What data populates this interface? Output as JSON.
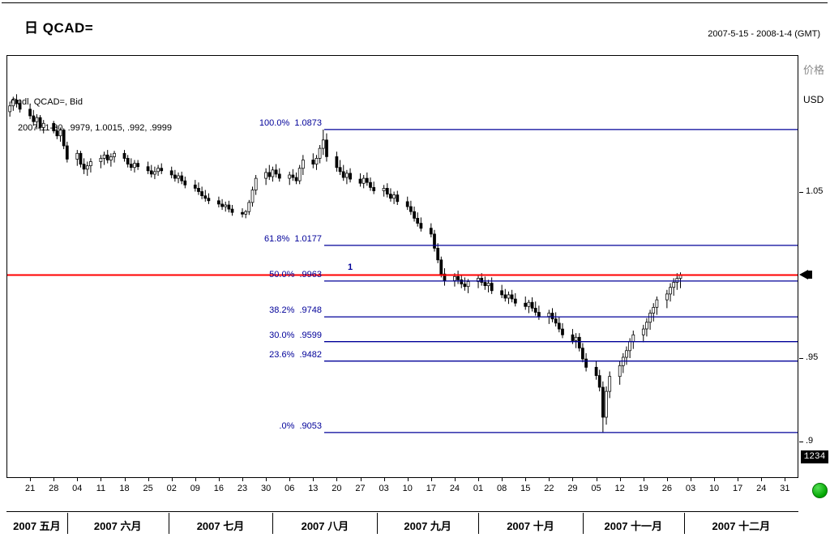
{
  "header": {
    "interval": "日",
    "symbol": "QCAD=",
    "date_range": "2007-5-15 - 2008-1-4 (GMT)"
  },
  "legend": {
    "line1": "Cndl, QCAD=, Bid",
    "line2": "2007-11-30, .9979, 1.0015, .992, .9999"
  },
  "axis": {
    "price_title": "价格",
    "currency": "USD",
    "ticks": [
      [
        1.05,
        "1.05"
      ],
      [
        0.95,
        ".95"
      ],
      [
        0.9,
        ".9"
      ]
    ],
    "badge": "1234"
  },
  "annotations": {
    "fib_handle": "1"
  },
  "colors": {
    "fib": "#000099",
    "current_price": "#ff0000",
    "candle": "#000000",
    "status_green": "#00b400"
  },
  "chart_data": {
    "type": "candlestick",
    "title": "日 QCAD=",
    "symbol": "QCAD=",
    "interval": "daily",
    "x_range": [
      "2007-05-14",
      "2008-01-04"
    ],
    "ylim": [
      0.878,
      1.132
    ],
    "current_price": 0.9999,
    "fib_levels": [
      {
        "pct": "100.0%",
        "display": "1.0873",
        "value": 1.0873
      },
      {
        "pct": "61.8%",
        "display": "1.0177",
        "value": 1.0177
      },
      {
        "pct": "50.0%",
        "display": ".9963",
        "value": 0.9963
      },
      {
        "pct": "38.2%",
        "display": ".9748",
        "value": 0.9748
      },
      {
        "pct": "30.0%",
        "display": ".9599",
        "value": 0.9599
      },
      {
        "pct": "23.6%",
        "display": ".9482",
        "value": 0.9482
      },
      {
        "pct": ".0%",
        "display": ".9053",
        "value": 0.9053
      }
    ],
    "x_ticks": [
      [
        "2007-05-21",
        "21"
      ],
      [
        "2007-05-28",
        "28"
      ],
      [
        "2007-06-04",
        "04"
      ],
      [
        "2007-06-11",
        "11"
      ],
      [
        "2007-06-18",
        "18"
      ],
      [
        "2007-06-25",
        "25"
      ],
      [
        "2007-07-02",
        "02"
      ],
      [
        "2007-07-09",
        "09"
      ],
      [
        "2007-07-16",
        "16"
      ],
      [
        "2007-07-23",
        "23"
      ],
      [
        "2007-07-30",
        "30"
      ],
      [
        "2007-08-06",
        "06"
      ],
      [
        "2007-08-13",
        "13"
      ],
      [
        "2007-08-20",
        "20"
      ],
      [
        "2007-08-27",
        "27"
      ],
      [
        "2007-09-03",
        "03"
      ],
      [
        "2007-09-10",
        "10"
      ],
      [
        "2007-09-17",
        "17"
      ],
      [
        "2007-09-24",
        "24"
      ],
      [
        "2007-10-01",
        "01"
      ],
      [
        "2007-10-08",
        "08"
      ],
      [
        "2007-10-15",
        "15"
      ],
      [
        "2007-10-22",
        "22"
      ],
      [
        "2007-10-29",
        "29"
      ],
      [
        "2007-11-05",
        "05"
      ],
      [
        "2007-11-12",
        "12"
      ],
      [
        "2007-11-19",
        "19"
      ],
      [
        "2007-11-26",
        "26"
      ],
      [
        "2007-12-03",
        "03"
      ],
      [
        "2007-12-10",
        "10"
      ],
      [
        "2007-12-17",
        "17"
      ],
      [
        "2007-12-24",
        "24"
      ],
      [
        "2007-12-31",
        "31"
      ]
    ],
    "months": [
      [
        "2007 五月",
        "2007-05-14",
        "2007-06-01"
      ],
      [
        "2007 六月",
        "2007-06-01",
        "2007-07-01"
      ],
      [
        "2007 七月",
        "2007-07-01",
        "2007-08-01"
      ],
      [
        "2007 八月",
        "2007-08-01",
        "2007-09-01"
      ],
      [
        "2007 九月",
        "2007-09-01",
        "2007-10-01"
      ],
      [
        "2007 十月",
        "2007-10-01",
        "2007-11-01"
      ],
      [
        "2007 十一月",
        "2007-11-01",
        "2007-12-01"
      ],
      [
        "2007 十二月",
        "2007-12-01",
        "2008-01-04"
      ]
    ],
    "candles": [
      [
        "2007-05-15",
        1.098,
        1.104,
        1.095,
        1.1015
      ],
      [
        "2007-05-16",
        1.1015,
        1.107,
        1.0985,
        1.105
      ],
      [
        "2007-05-17",
        1.105,
        1.1085,
        1.1005,
        1.103
      ],
      [
        "2007-05-18",
        1.103,
        1.1055,
        1.0975,
        1.0995
      ],
      [
        "2007-05-21",
        1.0995,
        1.1025,
        1.0935,
        1.0955
      ],
      [
        "2007-05-22",
        1.0955,
        1.099,
        1.0895,
        1.092
      ],
      [
        "2007-05-23",
        1.092,
        1.0965,
        1.0875,
        1.0945
      ],
      [
        "2007-05-24",
        1.0945,
        1.096,
        1.0865,
        1.0885
      ],
      [
        "2007-05-25",
        1.0885,
        1.093,
        1.085,
        1.091
      ],
      [
        "2007-05-28",
        1.091,
        1.0925,
        1.085,
        1.0865
      ],
      [
        "2007-05-29",
        1.0865,
        1.0895,
        1.0815,
        1.0835
      ],
      [
        "2007-05-30",
        1.0835,
        1.0885,
        1.08,
        1.087
      ],
      [
        "2007-05-31",
        1.087,
        1.088,
        1.0755,
        1.0775
      ],
      [
        "2007-06-01",
        1.0775,
        1.08,
        1.0675,
        1.0695
      ],
      [
        "2007-06-04",
        1.0695,
        1.075,
        1.0655,
        1.073
      ],
      [
        "2007-06-05",
        1.073,
        1.0745,
        1.0645,
        1.0665
      ],
      [
        "2007-06-06",
        1.0665,
        1.07,
        1.0605,
        1.0635
      ],
      [
        "2007-06-07",
        1.0635,
        1.068,
        1.0595,
        1.0655
      ],
      [
        "2007-06-08",
        1.0655,
        1.07,
        1.0615,
        1.068
      ],
      [
        "2007-06-11",
        1.068,
        1.072,
        1.064,
        1.07
      ],
      [
        "2007-06-12",
        1.07,
        1.074,
        1.066,
        1.072
      ],
      [
        "2007-06-13",
        1.072,
        1.075,
        1.067,
        1.069
      ],
      [
        "2007-06-14",
        1.069,
        1.073,
        1.065,
        1.071
      ],
      [
        "2007-06-15",
        1.071,
        1.0745,
        1.0675,
        1.073
      ],
      [
        "2007-06-18",
        1.073,
        1.075,
        1.068,
        1.07
      ],
      [
        "2007-06-19",
        1.07,
        1.072,
        1.0645,
        1.0665
      ],
      [
        "2007-06-20",
        1.0665,
        1.07,
        1.0625,
        1.0645
      ],
      [
        "2007-06-21",
        1.0645,
        1.069,
        1.0615,
        1.067
      ],
      [
        "2007-06-22",
        1.067,
        1.069,
        1.063,
        1.065
      ],
      [
        "2007-06-25",
        1.065,
        1.068,
        1.0605,
        1.0625
      ],
      [
        "2007-06-26",
        1.0625,
        1.066,
        1.0585,
        1.0605
      ],
      [
        "2007-06-27",
        1.0605,
        1.065,
        1.0575,
        1.062
      ],
      [
        "2007-06-28",
        1.062,
        1.066,
        1.0595,
        1.064
      ],
      [
        "2007-06-29",
        1.064,
        1.067,
        1.0605,
        1.0625
      ],
      [
        "2007-07-02",
        1.0625,
        1.065,
        1.058,
        1.06
      ],
      [
        "2007-07-03",
        1.06,
        1.063,
        1.056,
        1.058
      ],
      [
        "2007-07-04",
        1.058,
        1.0615,
        1.055,
        1.0595
      ],
      [
        "2007-07-05",
        1.0595,
        1.062,
        1.0545,
        1.0565
      ],
      [
        "2007-07-06",
        1.0565,
        1.059,
        1.052,
        1.054
      ],
      [
        "2007-07-09",
        1.054,
        1.057,
        1.05,
        1.052
      ],
      [
        "2007-07-10",
        1.052,
        1.0555,
        1.048,
        1.05
      ],
      [
        "2007-07-11",
        1.05,
        1.053,
        1.0455,
        1.0475
      ],
      [
        "2007-07-12",
        1.0475,
        1.051,
        1.044,
        1.046
      ],
      [
        "2007-07-13",
        1.046,
        1.049,
        1.0425,
        1.0445
      ],
      [
        "2007-07-16",
        1.0445,
        1.047,
        1.0405,
        1.0425
      ],
      [
        "2007-07-17",
        1.0425,
        1.0455,
        1.039,
        1.041
      ],
      [
        "2007-07-18",
        1.041,
        1.044,
        1.038,
        1.042
      ],
      [
        "2007-07-19",
        1.042,
        1.0445,
        1.0375,
        1.0395
      ],
      [
        "2007-07-20",
        1.0395,
        1.042,
        1.0355,
        1.0375
      ],
      [
        "2007-07-23",
        1.0375,
        1.04,
        1.0345,
        1.0365
      ],
      [
        "2007-07-24",
        1.0365,
        1.039,
        1.034,
        1.038
      ],
      [
        "2007-07-25",
        1.038,
        1.045,
        1.036,
        1.0435
      ],
      [
        "2007-07-26",
        1.0435,
        1.053,
        1.041,
        1.051
      ],
      [
        "2007-07-27",
        1.051,
        1.06,
        1.048,
        1.058
      ],
      [
        "2007-07-30",
        1.058,
        1.064,
        1.054,
        1.0615
      ],
      [
        "2007-07-31",
        1.0615,
        1.066,
        1.057,
        1.059
      ],
      [
        "2007-08-01",
        1.059,
        1.065,
        1.056,
        1.063
      ],
      [
        "2007-08-02",
        1.063,
        1.0665,
        1.0585,
        1.0605
      ],
      [
        "2007-08-03",
        1.0605,
        1.064,
        1.056,
        1.058
      ],
      [
        "2007-08-06",
        1.058,
        1.062,
        1.054,
        1.06
      ],
      [
        "2007-08-07",
        1.06,
        1.0635,
        1.0565,
        1.0585
      ],
      [
        "2007-08-08",
        1.0585,
        1.0615,
        1.0545,
        1.0565
      ],
      [
        "2007-08-09",
        1.0565,
        1.066,
        1.0545,
        1.064
      ],
      [
        "2007-08-10",
        1.064,
        1.072,
        1.06,
        1.069
      ],
      [
        "2007-08-13",
        1.069,
        1.073,
        1.064,
        1.0665
      ],
      [
        "2007-08-14",
        1.0665,
        1.072,
        1.063,
        1.07
      ],
      [
        "2007-08-15",
        1.07,
        1.078,
        1.067,
        1.076
      ],
      [
        "2007-08-16",
        1.076,
        1.0873,
        1.072,
        1.081
      ],
      [
        "2007-08-17",
        1.081,
        1.085,
        1.068,
        1.071
      ],
      [
        "2007-08-20",
        1.071,
        1.074,
        1.062,
        1.0645
      ],
      [
        "2007-08-21",
        1.0645,
        1.069,
        1.06,
        1.062
      ],
      [
        "2007-08-22",
        1.062,
        1.066,
        1.0565,
        1.0585
      ],
      [
        "2007-08-23",
        1.0585,
        1.063,
        1.0545,
        1.061
      ],
      [
        "2007-08-24",
        1.061,
        1.064,
        1.0555,
        1.0575
      ],
      [
        "2007-08-27",
        1.0575,
        1.061,
        1.053,
        1.055
      ],
      [
        "2007-08-28",
        1.055,
        1.06,
        1.052,
        1.058
      ],
      [
        "2007-08-29",
        1.058,
        1.0615,
        1.0535,
        1.0555
      ],
      [
        "2007-08-30",
        1.0555,
        1.0585,
        1.0505,
        1.0525
      ],
      [
        "2007-08-31",
        1.0525,
        1.056,
        1.0485,
        1.0505
      ],
      [
        "2007-09-03",
        1.0505,
        1.054,
        1.047,
        1.052
      ],
      [
        "2007-09-04",
        1.052,
        1.055,
        1.0465,
        1.0485
      ],
      [
        "2007-09-05",
        1.0485,
        1.052,
        1.044,
        1.046
      ],
      [
        "2007-09-06",
        1.046,
        1.05,
        1.0425,
        1.048
      ],
      [
        "2007-09-07",
        1.048,
        1.0505,
        1.042,
        1.044
      ],
      [
        "2007-09-10",
        1.044,
        1.047,
        1.039,
        1.041
      ],
      [
        "2007-09-11",
        1.041,
        1.0445,
        1.036,
        1.038
      ],
      [
        "2007-09-12",
        1.038,
        1.041,
        1.032,
        1.034
      ],
      [
        "2007-09-13",
        1.034,
        1.0375,
        1.029,
        1.031
      ],
      [
        "2007-09-14",
        1.031,
        1.0345,
        1.026,
        1.028
      ],
      [
        "2007-09-17",
        1.028,
        1.031,
        1.0225,
        1.0245
      ],
      [
        "2007-09-18",
        1.0245,
        1.027,
        1.014,
        1.016
      ],
      [
        "2007-09-19",
        1.016,
        1.019,
        1.007,
        1.009
      ],
      [
        "2007-09-20",
        1.009,
        1.011,
        0.9985,
        1.0005
      ],
      [
        "2007-09-21",
        1.0005,
        1.004,
        0.9935,
        0.9965
      ],
      [
        "2007-09-24",
        0.9965,
        1.001,
        0.993,
        0.999
      ],
      [
        "2007-09-25",
        0.999,
        1.0025,
        0.9945,
        0.997
      ],
      [
        "2007-09-26",
        0.997,
        1.0,
        0.992,
        0.9945
      ],
      [
        "2007-09-27",
        0.9945,
        0.9985,
        0.9905,
        0.993
      ],
      [
        "2007-09-28",
        0.993,
        0.9975,
        0.989,
        0.996
      ],
      [
        "2007-10-01",
        0.996,
        1.0,
        0.992,
        0.998
      ],
      [
        "2007-10-02",
        0.998,
        1.001,
        0.9935,
        0.9955
      ],
      [
        "2007-10-03",
        0.9955,
        0.999,
        0.991,
        0.9935
      ],
      [
        "2007-10-04",
        0.9935,
        0.997,
        0.9895,
        0.995
      ],
      [
        "2007-10-05",
        0.995,
        0.9985,
        0.9885,
        0.9905
      ],
      [
        "2007-10-08",
        0.9905,
        0.994,
        0.986,
        0.988
      ],
      [
        "2007-10-09",
        0.988,
        0.9915,
        0.984,
        0.986
      ],
      [
        "2007-10-10",
        0.986,
        0.99,
        0.9825,
        0.988
      ],
      [
        "2007-10-11",
        0.988,
        0.991,
        0.9835,
        0.9855
      ],
      [
        "2007-10-12",
        0.9855,
        0.989,
        0.981,
        0.983
      ],
      [
        "2007-10-15",
        0.983,
        0.987,
        0.979,
        0.981
      ],
      [
        "2007-10-16",
        0.981,
        0.985,
        0.977,
        0.9835
      ],
      [
        "2007-10-17",
        0.9835,
        0.9865,
        0.978,
        0.98
      ],
      [
        "2007-10-18",
        0.98,
        0.984,
        0.9755,
        0.9775
      ],
      [
        "2007-10-19",
        0.9775,
        0.9815,
        0.973,
        0.975
      ],
      [
        "2007-10-22",
        0.975,
        0.979,
        0.9705,
        0.977
      ],
      [
        "2007-10-23",
        0.977,
        0.98,
        0.9715,
        0.9735
      ],
      [
        "2007-10-24",
        0.9735,
        0.9775,
        0.969,
        0.971
      ],
      [
        "2007-10-25",
        0.971,
        0.9745,
        0.9655,
        0.9675
      ],
      [
        "2007-10-26",
        0.9675,
        0.971,
        0.962,
        0.964
      ],
      [
        "2007-10-29",
        0.964,
        0.9675,
        0.9585,
        0.9605
      ],
      [
        "2007-10-30",
        0.9605,
        0.965,
        0.956,
        0.9625
      ],
      [
        "2007-10-31",
        0.9625,
        0.965,
        0.954,
        0.956
      ],
      [
        "2007-11-01",
        0.956,
        0.959,
        0.9475,
        0.9495
      ],
      [
        "2007-11-02",
        0.9495,
        0.953,
        0.942,
        0.9445
      ],
      [
        "2007-11-05",
        0.9445,
        0.948,
        0.937,
        0.9395
      ],
      [
        "2007-11-06",
        0.9395,
        0.943,
        0.93,
        0.9325
      ],
      [
        "2007-11-07",
        0.9325,
        0.936,
        0.9053,
        0.9145
      ],
      [
        "2007-11-08",
        0.9145,
        0.933,
        0.91,
        0.93
      ],
      [
        "2007-11-09",
        0.93,
        0.942,
        0.926,
        0.939
      ],
      [
        "2007-11-12",
        0.939,
        0.948,
        0.934,
        0.9455
      ],
      [
        "2007-11-13",
        0.9455,
        0.953,
        0.941,
        0.9505
      ],
      [
        "2007-11-14",
        0.9505,
        0.957,
        0.946,
        0.9545
      ],
      [
        "2007-11-15",
        0.9545,
        0.962,
        0.95,
        0.96
      ],
      [
        "2007-11-16",
        0.96,
        0.9665,
        0.9555,
        0.964
      ],
      [
        "2007-11-19",
        0.964,
        0.97,
        0.9595,
        0.9675
      ],
      [
        "2007-11-20",
        0.9675,
        0.974,
        0.963,
        0.9715
      ],
      [
        "2007-11-21",
        0.9715,
        0.979,
        0.967,
        0.977
      ],
      [
        "2007-11-22",
        0.977,
        0.983,
        0.972,
        0.9805
      ],
      [
        "2007-11-23",
        0.9805,
        0.987,
        0.976,
        0.985
      ],
      [
        "2007-11-26",
        0.985,
        0.991,
        0.98,
        0.9885
      ],
      [
        "2007-11-27",
        0.9885,
        0.995,
        0.984,
        0.9925
      ],
      [
        "2007-11-28",
        0.9925,
        0.998,
        0.9875,
        0.9955
      ],
      [
        "2007-11-29",
        0.9955,
        1.001,
        0.991,
        0.9979
      ],
      [
        "2007-11-30",
        0.9979,
        1.0015,
        0.992,
        0.9999
      ]
    ]
  }
}
